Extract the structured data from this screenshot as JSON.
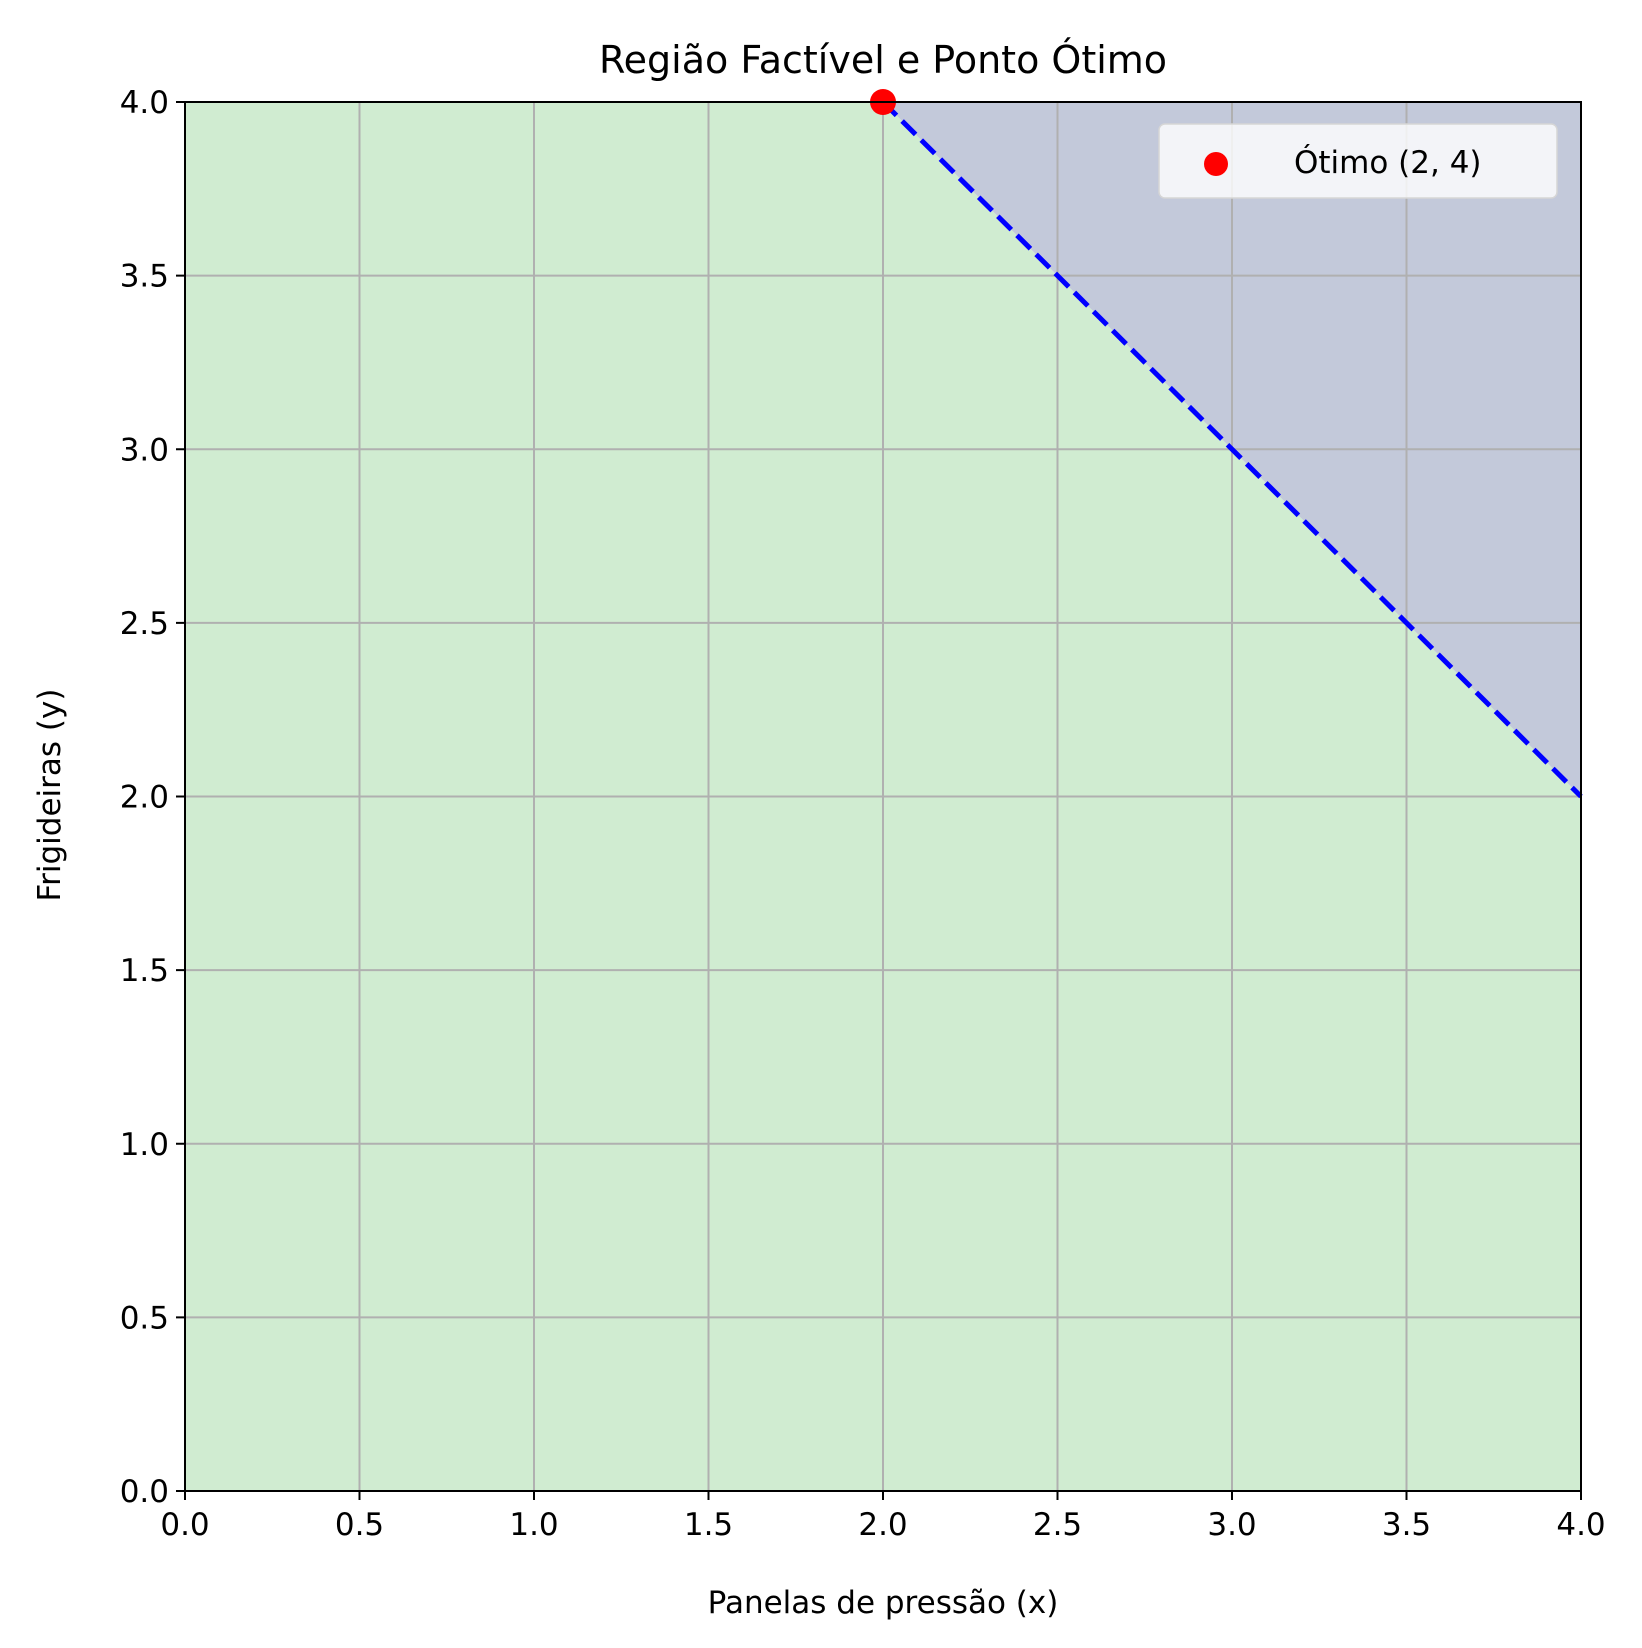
{
  "chart_data": {
    "type": "area",
    "title": "Região Factível e Ponto Ótimo",
    "xlabel": "Panelas de pressão (x)",
    "ylabel": "Frigideiras (y)",
    "xlim": [
      0,
      4
    ],
    "ylim": [
      0,
      4
    ],
    "xticks": [
      "0.0",
      "0.5",
      "1.0",
      "1.5",
      "2.0",
      "2.5",
      "3.0",
      "3.5",
      "4.0"
    ],
    "yticks": [
      "0.0",
      "0.5",
      "1.0",
      "1.5",
      "2.0",
      "2.5",
      "3.0",
      "3.5",
      "4.0"
    ],
    "xtick_values": [
      0,
      0.5,
      1,
      1.5,
      2,
      2.5,
      3,
      3.5,
      4
    ],
    "ytick_values": [
      0,
      0.5,
      1,
      1.5,
      2,
      2.5,
      3,
      3.5,
      4
    ],
    "grid": true,
    "regions": [
      {
        "fill": "#d0ecd1",
        "polygon": [
          [
            0,
            0
          ],
          [
            4,
            0
          ],
          [
            4,
            2
          ],
          [
            2,
            4
          ],
          [
            0,
            4
          ]
        ]
      },
      {
        "fill": "#c3c9da",
        "polygon": [
          [
            2,
            4
          ],
          [
            4,
            4
          ],
          [
            4,
            2
          ]
        ]
      }
    ],
    "constraint_line": {
      "x": [
        2,
        4
      ],
      "y": [
        4,
        2
      ],
      "color": "#0000ff",
      "style": "dashed"
    },
    "optimum": {
      "x": 2,
      "y": 4,
      "color": "#ff0000",
      "label": "Ótimo (2, 4)"
    },
    "legend": {
      "placement": "top-right",
      "entries": [
        "Ótimo (2, 4)"
      ]
    }
  }
}
